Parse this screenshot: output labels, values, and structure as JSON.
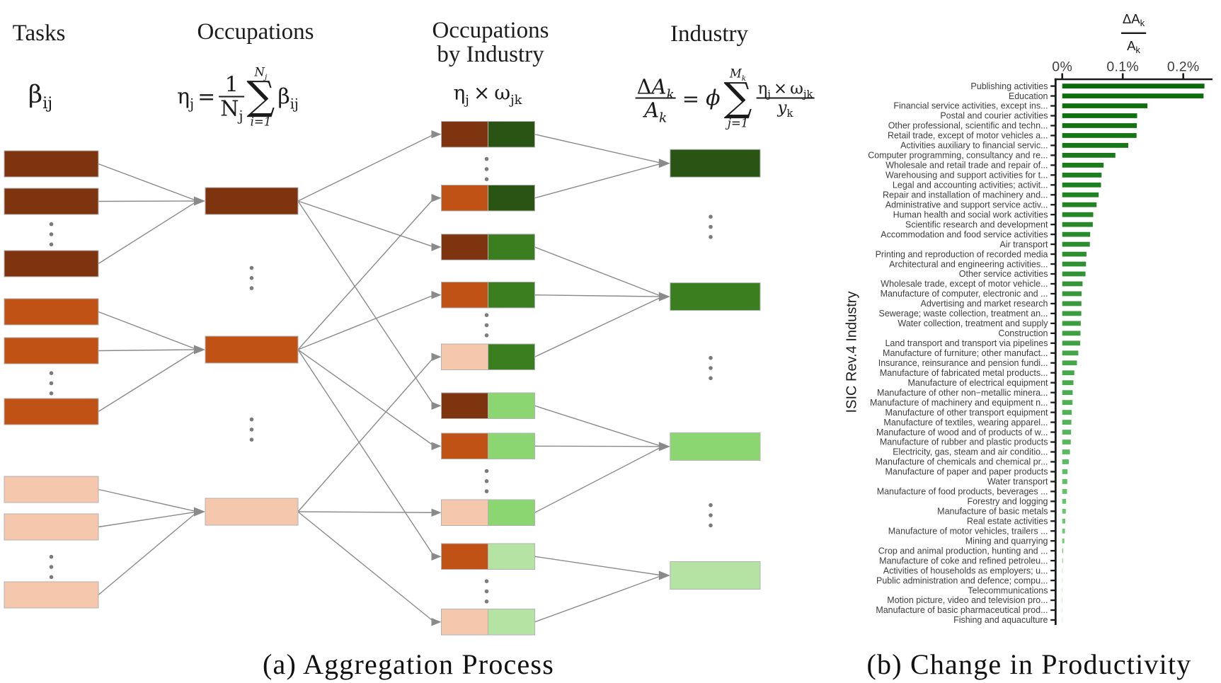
{
  "panel_a": {
    "caption": "(a) Aggregation Process",
    "headers": {
      "tasks": "Tasks",
      "occupations": "Occupations",
      "occ_by_industry_line1": "Occupations",
      "occ_by_industry_line2": "by Industry",
      "industry": "Industry"
    },
    "formulas": {
      "tasks": {
        "base": "β",
        "sub": "ij"
      },
      "occupations": {
        "lhs": "η",
        "lhs_sub": "j",
        "eq": "=",
        "num": "1",
        "den": "N",
        "den_sub": "j",
        "sigma": "∑",
        "top": "N",
        "top_sub": "j",
        "bottom": "i=1",
        "rhs": "β",
        "rhs_sub": "ij"
      },
      "occ_by_industry": {
        "a": "η",
        "a_sub": "j",
        "times": "×",
        "b": "ω",
        "b_sub": "jk"
      },
      "industry": {
        "num_delta": "Δ",
        "num": "A",
        "num_sub": "k",
        "den": "A",
        "den_sub": "k",
        "eq": "=",
        "phi": "ϕ",
        "sigma": "∑",
        "top": "M",
        "top_sub": "k",
        "bottom": "j=1",
        "rnum_a": "η",
        "rnum_a_sub": "j",
        "times": "×",
        "rnum_b": "ω",
        "rnum_b_sub": "jk",
        "rden": "y",
        "rden_sub": "k"
      }
    },
    "colors": {
      "task_dark": "#7d340f",
      "task_mid": "#c05215",
      "task_light": "#f5c7ac",
      "industry_1": "#2a5414",
      "industry_2": "#3a7e20",
      "industry_3": "#8cd672",
      "industry_4": "#b4e3a4",
      "box_border": "#b3b3b3",
      "line": "#8a8a8a",
      "arrow": "#8a8a8a",
      "dot": "#7b7b7b"
    },
    "tasks_groups": [
      {
        "color": "task_dark",
        "boxes": 3
      },
      {
        "color": "task_mid",
        "boxes": 3
      },
      {
        "color": "task_light",
        "boxes": 3
      }
    ],
    "occupations": [
      {
        "color": "task_dark"
      },
      {
        "color": "task_mid"
      },
      {
        "color": "task_light"
      }
    ],
    "occ_by_industry": [
      {
        "left": "task_dark",
        "right": "industry_1",
        "occupation": 0,
        "industry": 0
      },
      {
        "left": "task_mid",
        "right": "industry_1",
        "occupation": 1,
        "industry": 0
      },
      {
        "left": "task_dark",
        "right": "industry_2",
        "occupation": 0,
        "industry": 1
      },
      {
        "left": "task_mid",
        "right": "industry_2",
        "occupation": 1,
        "industry": 1
      },
      {
        "left": "task_light",
        "right": "industry_2",
        "occupation": 2,
        "industry": 1
      },
      {
        "left": "task_dark",
        "right": "industry_3",
        "occupation": 0,
        "industry": 2
      },
      {
        "left": "task_mid",
        "right": "industry_3",
        "occupation": 1,
        "industry": 2
      },
      {
        "left": "task_light",
        "right": "industry_3",
        "occupation": 2,
        "industry": 2
      },
      {
        "left": "task_mid",
        "right": "industry_4",
        "occupation": 1,
        "industry": 3
      },
      {
        "left": "task_light",
        "right": "industry_4",
        "occupation": 2,
        "industry": 3
      }
    ],
    "industries": [
      {
        "color": "industry_1"
      },
      {
        "color": "industry_2"
      },
      {
        "color": "industry_3"
      },
      {
        "color": "industry_4"
      }
    ]
  },
  "panel_b": {
    "caption": "(b) Change in Productivity",
    "chart_data": {
      "type": "bar",
      "orientation": "horizontal",
      "title_fraction": {
        "numerator": "ΔA",
        "numerator_sub": "k",
        "denominator": "A",
        "denominator_sub": "k"
      },
      "xtick_labels": [
        "0%",
        "0.1%",
        "0.2%"
      ],
      "xtick_values": [
        0,
        0.1,
        0.2
      ],
      "xlim": [
        0,
        0.248
      ],
      "ylabel": "ISIC Rev.4 Industry",
      "grid": false,
      "bar_color_start": "#0a6b0a",
      "bar_color_end": "#7ddd85",
      "axis_color": "#1a1a1a",
      "tick_label_color": "#3d3d3d",
      "category_label_color": "#3e3e3e",
      "categories": [
        "Publishing activities",
        "Education",
        "Financial service activities, except ins...",
        "Postal and courier activities",
        "Other professional, scientific and techn...",
        "Retail trade, except of motor vehicles a...",
        "Activities auxiliary to financial servic...",
        "Computer programming, consultancy and re...",
        "Wholesale and retail trade and repair of...",
        "Warehousing and support activities for t...",
        "Legal and accounting activities; activit...",
        "Repair and installation of machinery and...",
        "Administrative and support service activ...",
        "Human health and social work activities",
        "Scientific research and development",
        "Accommodation and food service activities",
        "Air transport",
        "Printing and reproduction of recorded media",
        "Architectural and engineering activities...",
        "Other service activities",
        "Wholesale trade, except of motor vehicle...",
        "Manufacture of computer, electronic and ...",
        "Advertising and market research",
        "Sewerage; waste collection, treatment an...",
        "Water collection, treatment and supply",
        "Construction",
        "Land transport and transport via pipelines",
        "Manufacture of furniture; other manufact...",
        "Insurance, reinsurance and pension fundi...",
        "Manufacture of fabricated metal products...",
        "Manufacture of electrical equipment",
        "Manufacture of other non−metallic minera...",
        "Manufacture of machinery and equipment n...",
        "Manufacture of other transport equipment",
        "Manufacture of textiles, wearing apparel...",
        "Manufacture of wood and of products of w...",
        "Manufacture of rubber and plastic products",
        "Electricity, gas, steam and air conditio...",
        "Manufacture of chemicals and chemical pr...",
        "Manufacture of paper and paper products",
        "Water transport",
        "Manufacture of food products, beverages ...",
        "Forestry and logging",
        "Manufacture of basic metals",
        "Real estate activities",
        "Manufacture of motor vehicles, trailers ...",
        "Mining and quarrying",
        "Crop and animal production, hunting and ...",
        "Manufacture of coke and refined petroleu...",
        "Activities of households as employers; u...",
        "Public administration and defence; compu...",
        "Telecommunications",
        "Motion picture, video and television pro...",
        "Manufacture of basic pharmaceutical prod...",
        "Fishing and aquaculture"
      ],
      "values": [
        0.235,
        0.2335,
        0.1408,
        0.1237,
        0.1233,
        0.1228,
        0.1091,
        0.0878,
        0.0684,
        0.065,
        0.0641,
        0.0602,
        0.0568,
        0.0512,
        0.0505,
        0.0462,
        0.0456,
        0.04,
        0.0393,
        0.0384,
        0.0336,
        0.032,
        0.0317,
        0.0315,
        0.0306,
        0.0302,
        0.0297,
        0.0266,
        0.0243,
        0.02,
        0.0185,
        0.0172,
        0.017,
        0.0156,
        0.0151,
        0.0146,
        0.0141,
        0.0127,
        0.0108,
        0.0088,
        0.0083,
        0.0079,
        0.0064,
        0.0059,
        0.005,
        0.0045,
        0.0035,
        0.0016,
        0.0011,
        0.0005,
        0.0004,
        0.0004,
        0.0003,
        0.0003,
        0.0003
      ],
      "values_unit": "%"
    }
  }
}
